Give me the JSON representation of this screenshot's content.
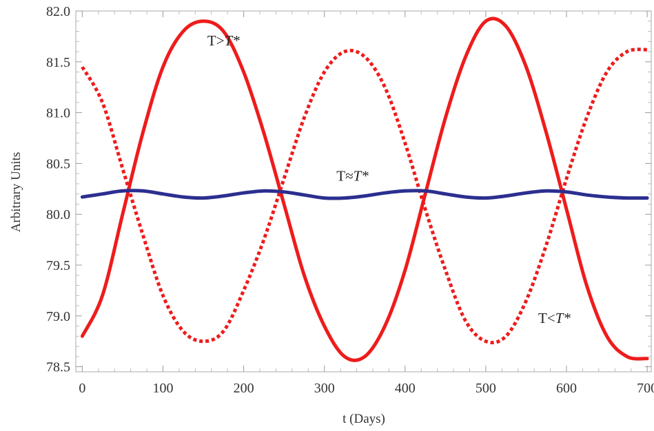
{
  "chart_data": {
    "type": "line",
    "xlabel": "t (Days)",
    "ylabel": "Arbitrary Units",
    "xlim": [
      -8,
      705
    ],
    "ylim": [
      78.45,
      82.0
    ],
    "x_ticks": [
      0,
      100,
      200,
      300,
      400,
      500,
      600,
      700
    ],
    "x_tick_labels": [
      "0",
      "100",
      "200",
      "300",
      "400",
      "500",
      "600",
      "700"
    ],
    "y_ticks": [
      78.5,
      79.0,
      79.5,
      80.0,
      80.5,
      81.0,
      81.5,
      82.0
    ],
    "y_tick_labels": [
      "78.5",
      "79.0",
      "79.5",
      "80.0",
      "80.5",
      "81.0",
      "81.5",
      "82.0"
    ],
    "grid": false,
    "series": [
      {
        "key": "solid-red",
        "color": "#ee1c1c",
        "dash": "solid",
        "x": [
          0,
          25,
          50,
          75,
          100,
          125,
          150,
          175,
          200,
          225,
          250,
          275,
          300,
          325,
          350,
          375,
          400,
          425,
          450,
          475,
          500,
          525,
          550,
          575,
          600,
          625,
          650,
          675,
          700
        ],
        "y": [
          78.8,
          79.2,
          80.0,
          80.8,
          81.45,
          81.8,
          81.9,
          81.8,
          81.4,
          80.8,
          80.1,
          79.4,
          78.9,
          78.6,
          78.6,
          78.9,
          79.45,
          80.2,
          80.95,
          81.55,
          81.9,
          81.85,
          81.45,
          80.8,
          80.05,
          79.3,
          78.8,
          78.6,
          78.58
        ]
      },
      {
        "key": "dotted-red",
        "color": "#ee1c1c",
        "dash": "dotted",
        "x": [
          0,
          25,
          50,
          75,
          100,
          125,
          150,
          175,
          200,
          225,
          250,
          275,
          300,
          325,
          350,
          375,
          400,
          425,
          450,
          475,
          500,
          525,
          550,
          575,
          600,
          625,
          650,
          675,
          700
        ],
        "y": [
          81.45,
          81.1,
          80.45,
          79.8,
          79.2,
          78.85,
          78.75,
          78.85,
          79.25,
          79.75,
          80.35,
          80.95,
          81.4,
          81.6,
          81.55,
          81.25,
          80.7,
          80.05,
          79.45,
          78.95,
          78.75,
          78.8,
          79.15,
          79.7,
          80.35,
          80.95,
          81.4,
          81.6,
          81.62
        ]
      },
      {
        "key": "solid-blue",
        "color": "#2b2f8f",
        "dash": "solid",
        "x": [
          0,
          25,
          50,
          75,
          100,
          125,
          150,
          175,
          200,
          225,
          250,
          275,
          300,
          325,
          350,
          375,
          400,
          425,
          450,
          475,
          500,
          525,
          550,
          575,
          600,
          625,
          650,
          675,
          700
        ],
        "y": [
          80.17,
          80.2,
          80.23,
          80.23,
          80.2,
          80.17,
          80.16,
          80.18,
          80.21,
          80.23,
          80.22,
          80.19,
          80.16,
          80.16,
          80.18,
          80.21,
          80.23,
          80.23,
          80.2,
          80.17,
          80.16,
          80.18,
          80.21,
          80.23,
          80.22,
          80.19,
          80.17,
          80.16,
          80.16
        ]
      }
    ],
    "annotations": [
      {
        "key": "t-gt",
        "text_main": "T>",
        "text_italic": "T*",
        "x": 155,
        "y": 81.66
      },
      {
        "key": "t-eq",
        "text_main": "T≈",
        "text_italic": "T*",
        "x": 315,
        "y": 80.33
      },
      {
        "key": "t-lt",
        "text_main": "T<",
        "text_italic": "T*",
        "x": 565,
        "y": 78.93
      }
    ]
  }
}
